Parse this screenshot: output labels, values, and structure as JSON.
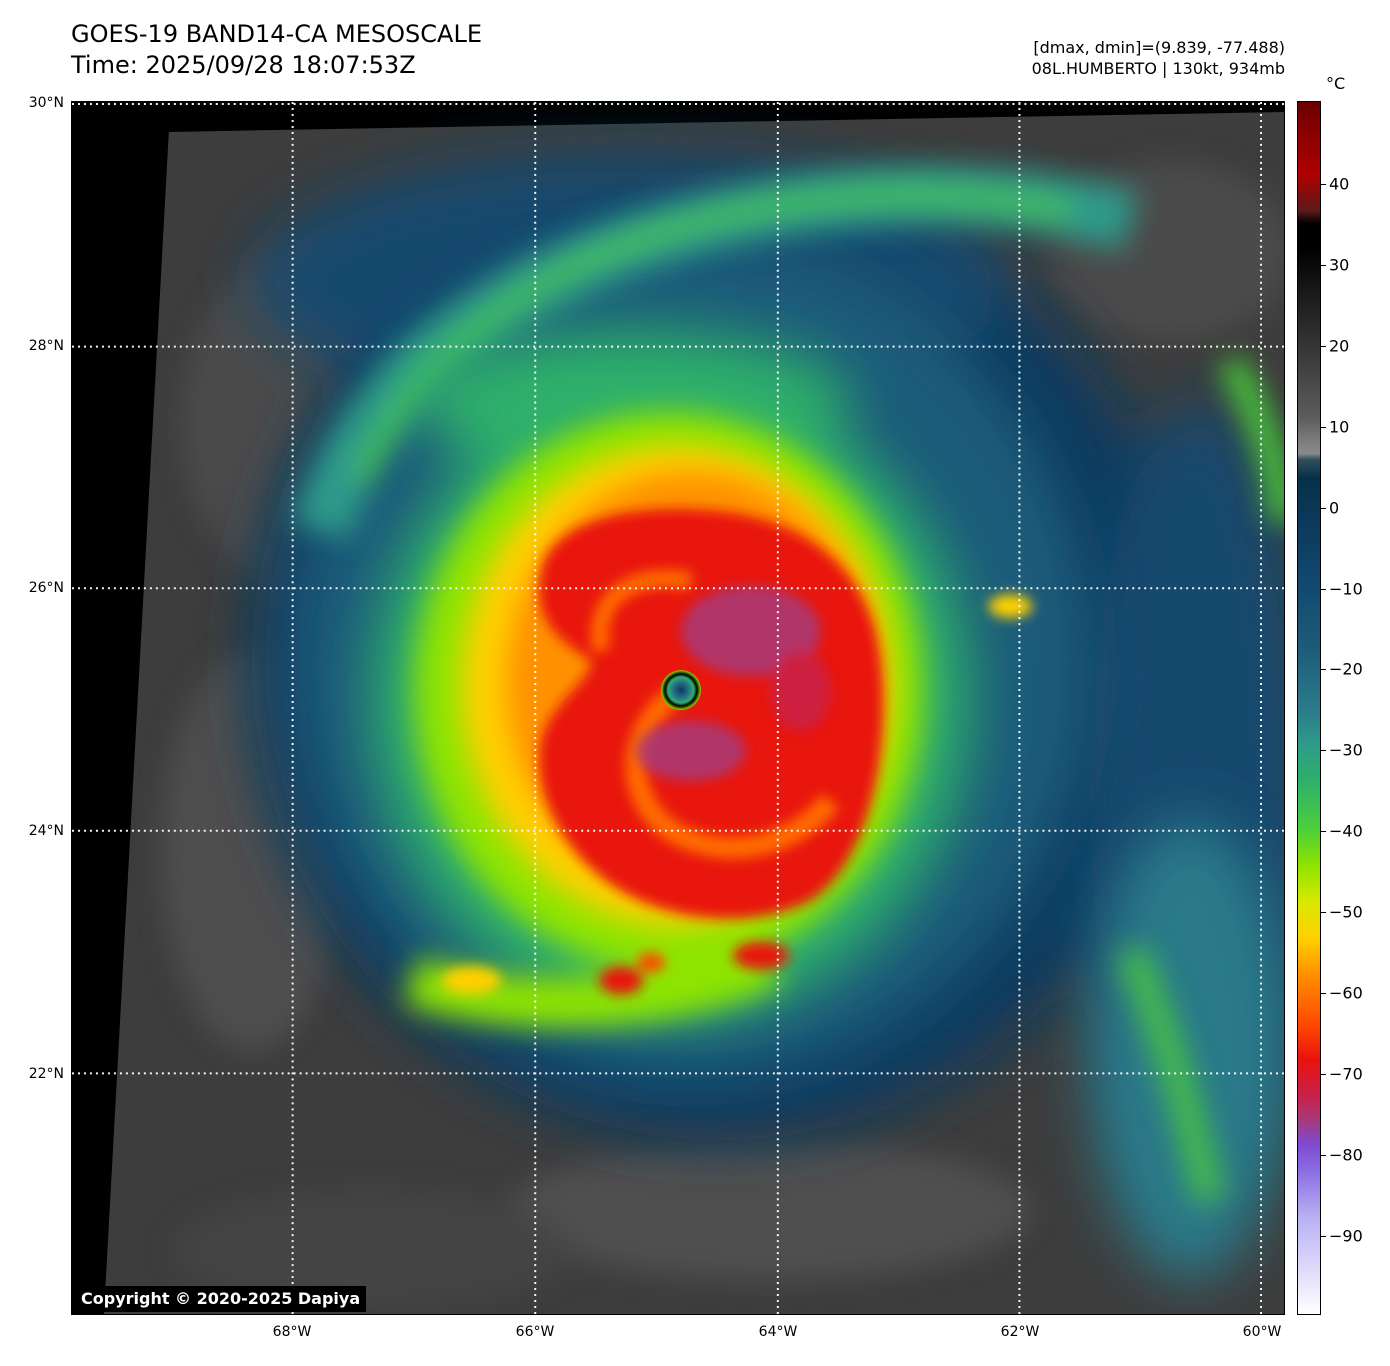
{
  "header": {
    "title_line1": "GOES-19 BAND14-CA MESOSCALE",
    "title_line2": "Time: 2025/09/28 18:07:53Z",
    "info_line1": "[dmax, dmin]=(9.839, -77.488)",
    "info_line2": "08L.HUMBERTO | 130kt, 934mb"
  },
  "map": {
    "copyright": "Copyright © 2020-2025 Dapiya",
    "lat_labels": [
      "30°N",
      "28°N",
      "26°N",
      "24°N",
      "22°N"
    ],
    "lon_labels": [
      "68°W",
      "66°W",
      "64°W",
      "62°W",
      "60°W"
    ]
  },
  "colorbar": {
    "unit": "°C",
    "tick_labels": [
      "40",
      "30",
      "20",
      "10",
      "0",
      "−10",
      "−20",
      "−30",
      "−40",
      "−50",
      "−60",
      "−70",
      "−80",
      "−90"
    ]
  }
}
